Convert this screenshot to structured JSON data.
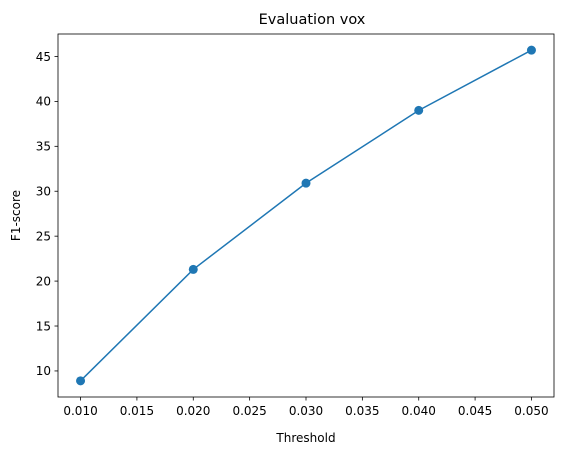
{
  "chart_data": {
    "type": "line",
    "title": "Evaluation vox",
    "xlabel": "Threshold",
    "ylabel": "F1-score",
    "x": [
      0.01,
      0.02,
      0.03,
      0.04,
      0.05
    ],
    "series": [
      {
        "values": [
          8.9,
          21.3,
          30.9,
          39.0,
          45.7
        ],
        "color": "#1f77b4",
        "marker": "circle"
      }
    ],
    "xlim": [
      0.008,
      0.052
    ],
    "ylim": [
      7.1,
      47.5
    ],
    "xticks": [
      "0.010",
      "0.015",
      "0.020",
      "0.025",
      "0.030",
      "0.035",
      "0.040",
      "0.045",
      "0.050"
    ],
    "yticks": [
      "10",
      "15",
      "20",
      "25",
      "30",
      "35",
      "40",
      "45"
    ],
    "grid": false,
    "legend": "none"
  }
}
